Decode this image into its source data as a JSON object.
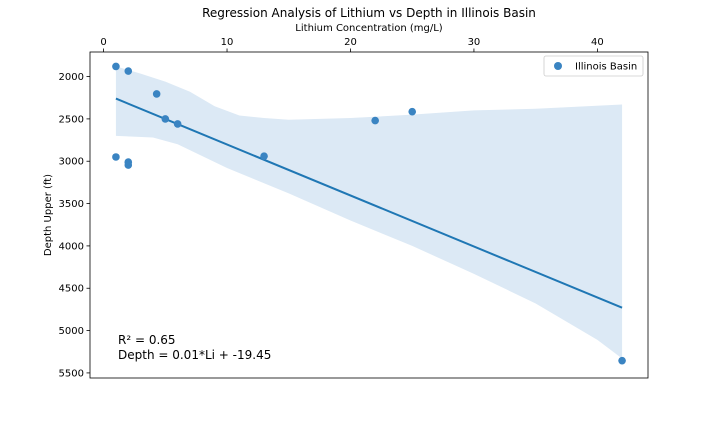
{
  "chart_data": {
    "type": "scatter",
    "title": "Regression Analysis of Lithium vs Depth in Illinois Basin",
    "xlabel": "Lithium Concentration (mg/L)",
    "ylabel": "Depth Upper (ft)",
    "xlim": [
      -1.1,
      44.1
    ],
    "ylim": [
      5560,
      1710
    ],
    "y_inverted": true,
    "x_axis_position": "top",
    "x_ticks": [
      0,
      10,
      20,
      30,
      40
    ],
    "y_ticks": [
      2000,
      2500,
      3000,
      3500,
      4000,
      4500,
      5000,
      5500
    ],
    "series": [
      {
        "name": "Illinois Basin",
        "color": "#3a84c2",
        "points": [
          {
            "x": 1.0,
            "y": 1880
          },
          {
            "x": 2.0,
            "y": 1935
          },
          {
            "x": 4.3,
            "y": 2205
          },
          {
            "x": 5.0,
            "y": 2500
          },
          {
            "x": 6.0,
            "y": 2560
          },
          {
            "x": 1.0,
            "y": 2950
          },
          {
            "x": 2.0,
            "y": 3010
          },
          {
            "x": 2.0,
            "y": 3045
          },
          {
            "x": 13.0,
            "y": 2940
          },
          {
            "x": 22.0,
            "y": 2520
          },
          {
            "x": 25.0,
            "y": 2415
          },
          {
            "x": 42.0,
            "y": 5355
          }
        ]
      }
    ],
    "regression": {
      "color": "#1f77b4",
      "band_color": "#dce9f5",
      "line": [
        {
          "x": 1.0,
          "y": 2260
        },
        {
          "x": 42.0,
          "y": 4730
        }
      ],
      "band_upper": [
        {
          "x": 1.0,
          "y": 1880
        },
        {
          "x": 3.0,
          "y": 1965
        },
        {
          "x": 5.0,
          "y": 2060
        },
        {
          "x": 7.0,
          "y": 2180
        },
        {
          "x": 9.0,
          "y": 2350
        },
        {
          "x": 11.0,
          "y": 2460
        },
        {
          "x": 13.0,
          "y": 2490
        },
        {
          "x": 15.0,
          "y": 2510
        },
        {
          "x": 20.0,
          "y": 2490
        },
        {
          "x": 25.0,
          "y": 2450
        },
        {
          "x": 30.0,
          "y": 2400
        },
        {
          "x": 35.0,
          "y": 2380
        },
        {
          "x": 42.0,
          "y": 2330
        }
      ],
      "band_lower": [
        {
          "x": 1.0,
          "y": 2700
        },
        {
          "x": 4.0,
          "y": 2720
        },
        {
          "x": 6.0,
          "y": 2800
        },
        {
          "x": 8.0,
          "y": 2940
        },
        {
          "x": 10.0,
          "y": 3080
        },
        {
          "x": 15.0,
          "y": 3380
        },
        {
          "x": 20.0,
          "y": 3700
        },
        {
          "x": 25.0,
          "y": 4000
        },
        {
          "x": 30.0,
          "y": 4330
        },
        {
          "x": 35.0,
          "y": 4680
        },
        {
          "x": 40.0,
          "y": 5110
        },
        {
          "x": 42.0,
          "y": 5330
        }
      ]
    },
    "legend": {
      "position": "top-right",
      "label": "Illinois Basin"
    },
    "annotations": [
      "R² = 0.65",
      "Depth = 0.01*Li + -19.45"
    ]
  }
}
